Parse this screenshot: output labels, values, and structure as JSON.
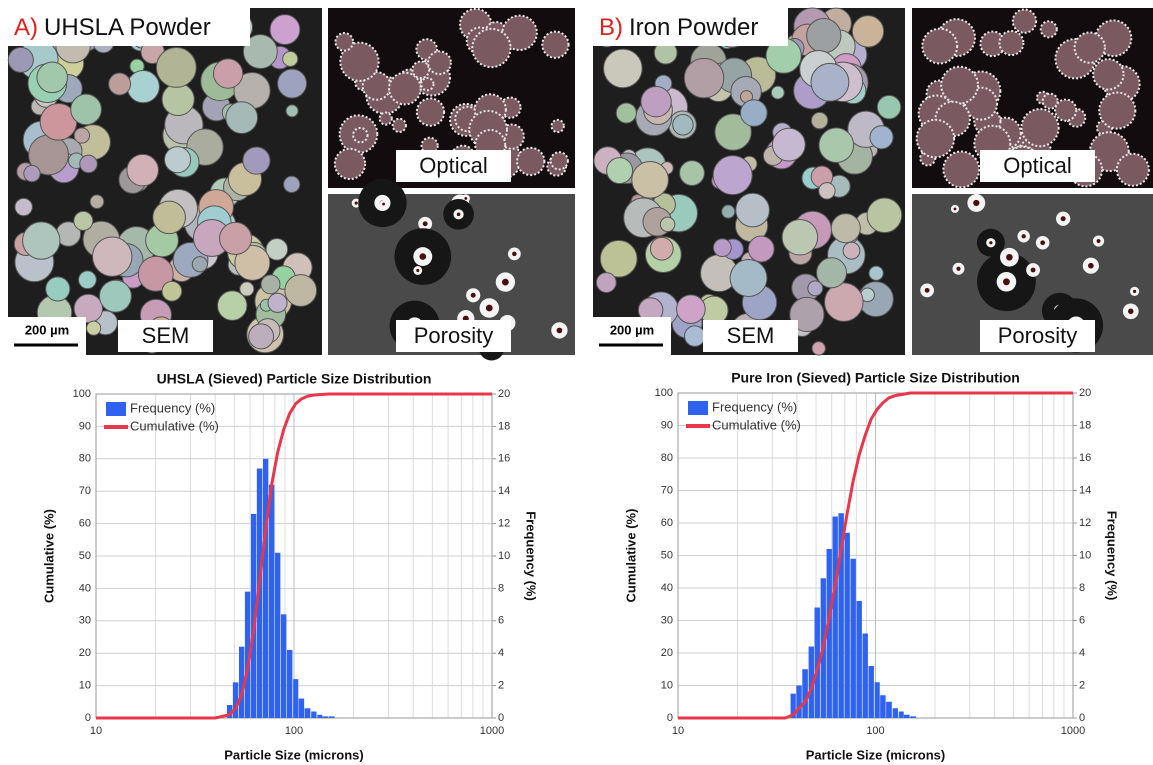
{
  "panels": [
    {
      "label_letter": "A)",
      "label_text": "UHSLA Powder",
      "scale_bar": "200 µm",
      "sem": "SEM",
      "optical": "Optical",
      "porosity": "Porosity"
    },
    {
      "label_letter": "B)",
      "label_text": "Iron Powder",
      "scale_bar": "200 µm",
      "sem": "SEM",
      "optical": "Optical",
      "porosity": "Porosity"
    }
  ],
  "chart_data": [
    {
      "type": "bar",
      "title": "UHSLA (Sieved) Particle Size Distribution",
      "xlabel": "Particle Size  (microns)",
      "ylabel": "Cumulative  (%)",
      "y2label": "Frequency (%)",
      "log_x": true,
      "grid": true,
      "legend": "upper left",
      "xlim": [
        10,
        1000
      ],
      "xticks": [
        10,
        100,
        1000
      ],
      "ylim": [
        0,
        100
      ],
      "yticks": [
        0,
        10,
        20,
        30,
        40,
        50,
        60,
        70,
        80,
        90,
        100
      ],
      "y2lim": [
        0,
        20
      ],
      "y2ticks": [
        0,
        2,
        4,
        6,
        8,
        10,
        12,
        14,
        16,
        18,
        20
      ],
      "series": [
        {
          "name": "Frequency (%)",
          "type": "bar",
          "axis": "y2",
          "color": "#2f62ee",
          "x": [
            47.3,
            50.7,
            54.4,
            58.3,
            62.5,
            67.0,
            71.9,
            77.1,
            82.7,
            88.7,
            95.1,
            102,
            109,
            117,
            126,
            135,
            144,
            155
          ],
          "values": [
            0.8,
            2.2,
            4.4,
            7.8,
            12.6,
            15.4,
            16.0,
            14.4,
            10.2,
            6.4,
            4.2,
            2.4,
            1.2,
            0.6,
            0.4,
            0.2,
            0.1,
            0.1
          ]
        },
        {
          "name": "Cumulative (%)",
          "type": "line",
          "axis": "y",
          "color": "#e8374a",
          "x": [
            10,
            40,
            47.3,
            50.7,
            54.4,
            58.3,
            62.5,
            67.0,
            71.9,
            77.1,
            82.7,
            88.7,
            95.1,
            102,
            109,
            117,
            126,
            150,
            1000
          ],
          "values": [
            0,
            0,
            1,
            3,
            7,
            15,
            27,
            42,
            58,
            72,
            82,
            89,
            94,
            97,
            98.5,
            99.3,
            99.7,
            100,
            100
          ]
        }
      ]
    },
    {
      "type": "bar",
      "title": "Pure Iron (Sieved) Particle Size Distribution",
      "xlabel": "Particle Size  (microns)",
      "ylabel": "Cumulative  (%)",
      "y2label": "Frequency (%)",
      "log_x": true,
      "grid": true,
      "legend": "upper left",
      "xlim": [
        10,
        1000
      ],
      "xticks": [
        10,
        100,
        1000
      ],
      "ylim": [
        0,
        100
      ],
      "yticks": [
        0,
        10,
        20,
        30,
        40,
        50,
        60,
        70,
        80,
        90,
        100
      ],
      "y2lim": [
        0,
        20
      ],
      "y2ticks": [
        0,
        2,
        4,
        6,
        8,
        10,
        12,
        14,
        16,
        18,
        20
      ],
      "series": [
        {
          "name": "Frequency (%)",
          "type": "bar",
          "axis": "y2",
          "color": "#2f62ee",
          "x": [
            38.3,
            41.0,
            44.0,
            47.3,
            50.7,
            54.4,
            58.3,
            62.5,
            67.0,
            71.9,
            77.1,
            82.7,
            88.7,
            95.1,
            102,
            109,
            117,
            126,
            135,
            144,
            155
          ],
          "values": [
            1.5,
            2.0,
            3.0,
            4.4,
            6.8,
            8.6,
            10.4,
            12.4,
            12.6,
            11.4,
            9.8,
            7.2,
            5.2,
            3.2,
            2.2,
            1.4,
            1.0,
            0.6,
            0.4,
            0.2,
            0.1
          ]
        },
        {
          "name": "Cumulative (%)",
          "type": "line",
          "axis": "y",
          "color": "#e8374a",
          "x": [
            10,
            35,
            38.3,
            41.0,
            44.0,
            47.3,
            50.7,
            54.4,
            58.3,
            62.5,
            67.0,
            71.9,
            77.1,
            82.7,
            88.7,
            95.1,
            102,
            109,
            117,
            126,
            150,
            1000
          ],
          "values": [
            0,
            0,
            1,
            3,
            5,
            9,
            15,
            22,
            31,
            41,
            52,
            63,
            73,
            81,
            87,
            92,
            95,
            97,
            98.5,
            99.2,
            100,
            100
          ]
        }
      ]
    }
  ]
}
